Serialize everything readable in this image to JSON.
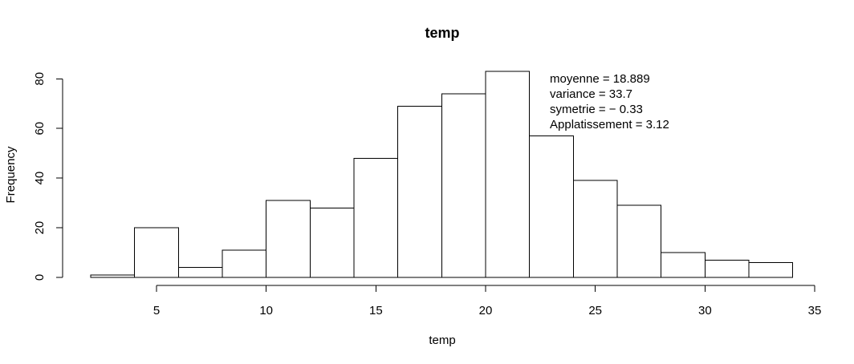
{
  "chart_data": {
    "type": "bar",
    "title": "temp",
    "xlabel": "temp",
    "ylabel": "Frequency",
    "bins": [
      {
        "from": 2,
        "to": 4,
        "count": 1
      },
      {
        "from": 4,
        "to": 6,
        "count": 20
      },
      {
        "from": 6,
        "to": 8,
        "count": 4
      },
      {
        "from": 8,
        "to": 10,
        "count": 11
      },
      {
        "from": 10,
        "to": 12,
        "count": 31
      },
      {
        "from": 12,
        "to": 14,
        "count": 28
      },
      {
        "from": 14,
        "to": 16,
        "count": 48
      },
      {
        "from": 16,
        "to": 18,
        "count": 69
      },
      {
        "from": 18,
        "to": 20,
        "count": 74
      },
      {
        "from": 20,
        "to": 22,
        "count": 83
      },
      {
        "from": 22,
        "to": 24,
        "count": 57
      },
      {
        "from": 24,
        "to": 26,
        "count": 39
      },
      {
        "from": 26,
        "to": 28,
        "count": 29
      },
      {
        "from": 28,
        "to": 30,
        "count": 10
      },
      {
        "from": 30,
        "to": 32,
        "count": 7
      },
      {
        "from": 32,
        "to": 34,
        "count": 6
      }
    ],
    "x_ticks": [
      5,
      10,
      15,
      20,
      25,
      30,
      35
    ],
    "y_ticks": [
      0,
      20,
      40,
      60,
      80
    ],
    "xlim": [
      5,
      35
    ],
    "ylim": [
      0,
      83
    ],
    "grid": false,
    "annotations": [
      "moyenne = 18.889",
      "variance = 33.7",
      "symetrie = − 0.33",
      "Applatissement = 3.12"
    ]
  }
}
